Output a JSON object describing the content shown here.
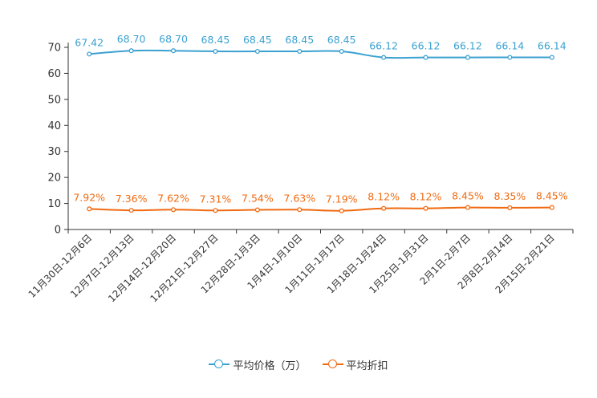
{
  "chart_data": {
    "type": "line",
    "title": "",
    "xlabel": "",
    "ylabel": "",
    "ylim": [
      0,
      70
    ],
    "yticks": [
      0,
      10,
      20,
      30,
      40,
      50,
      60,
      70
    ],
    "grid": false,
    "legend_position": "bottom-center",
    "categories": [
      "11月30日-12月6日",
      "12月7日-12月13日",
      "12月14日-12月20日",
      "12月21日-12月27日",
      "12月28日-1月3日",
      "1月4日-1月10日",
      "1月11日-1月17日",
      "1月18日-1月24日",
      "1月25日-1月31日",
      "2月1日-2月7日",
      "2月8日-2月14日",
      "2月15日-2月21日"
    ],
    "series": [
      {
        "name": "平均价格（万）",
        "color": "#3ba1d1",
        "values": [
          67.42,
          68.7,
          68.7,
          68.45,
          68.45,
          68.45,
          68.45,
          66.12,
          66.12,
          66.12,
          66.14,
          66.14
        ],
        "labels": [
          "67.42",
          "68.70",
          "68.70",
          "68.45",
          "68.45",
          "68.45",
          "68.45",
          "66.12",
          "66.12",
          "66.12",
          "66.14",
          "66.14"
        ]
      },
      {
        "name": "平均折扣",
        "color": "#f06a10",
        "values": [
          7.92,
          7.36,
          7.62,
          7.31,
          7.54,
          7.63,
          7.19,
          8.12,
          8.12,
          8.45,
          8.35,
          8.45
        ],
        "labels": [
          "7.92%",
          "7.36%",
          "7.62%",
          "7.31%",
          "7.54%",
          "7.63%",
          "7.19%",
          "8.12%",
          "8.12%",
          "8.45%",
          "8.35%",
          "8.45%"
        ]
      }
    ]
  }
}
